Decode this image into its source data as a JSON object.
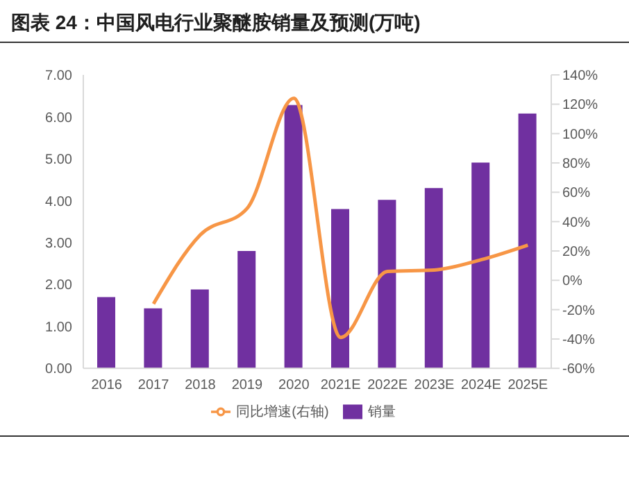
{
  "chart_data": {
    "type": "bar",
    "title": "图表 24：中国风电行业聚醚胺销量及预测(万吨)",
    "categories": [
      "2016",
      "2017",
      "2018",
      "2019",
      "2020",
      "2021E",
      "2022E",
      "2023E",
      "2024E",
      "2025E"
    ],
    "series": [
      {
        "name": "销量",
        "color": "#7030a0",
        "values": [
          1.7,
          1.43,
          1.88,
          2.8,
          6.28,
          3.8,
          4.02,
          4.3,
          4.91,
          6.08
        ]
      },
      {
        "name": "同比增速(右轴)",
        "type": "line",
        "axis": "y2",
        "color": "#f79646",
        "values": [
          null,
          -16,
          31,
          49,
          124,
          -39,
          6,
          7,
          14,
          24
        ]
      }
    ],
    "ylim": [
      0,
      7
    ],
    "yticks": [
      {
        "value": 0,
        "label": "0.00"
      },
      {
        "value": 1,
        "label": "1.00"
      },
      {
        "value": 2,
        "label": "2.00"
      },
      {
        "value": 3,
        "label": "3.00"
      },
      {
        "value": 4,
        "label": "4.00"
      },
      {
        "value": 5,
        "label": "5.00"
      },
      {
        "value": 6,
        "label": "6.00"
      },
      {
        "value": 7,
        "label": "7.00"
      }
    ],
    "y2lim": [
      -60,
      140
    ],
    "y2ticks": [
      {
        "value": -60,
        "label": "-60%"
      },
      {
        "value": -40,
        "label": "-40%"
      },
      {
        "value": -20,
        "label": "-20%"
      },
      {
        "value": 0,
        "label": "0%"
      },
      {
        "value": 20,
        "label": "20%"
      },
      {
        "value": 40,
        "label": "40%"
      },
      {
        "value": 60,
        "label": "60%"
      },
      {
        "value": 80,
        "label": "80%"
      },
      {
        "value": 100,
        "label": "100%"
      },
      {
        "value": 120,
        "label": "120%"
      },
      {
        "value": 140,
        "label": "140%"
      }
    ],
    "grid": false,
    "legend": "bottom",
    "marker": "none",
    "line_style": "solid"
  }
}
